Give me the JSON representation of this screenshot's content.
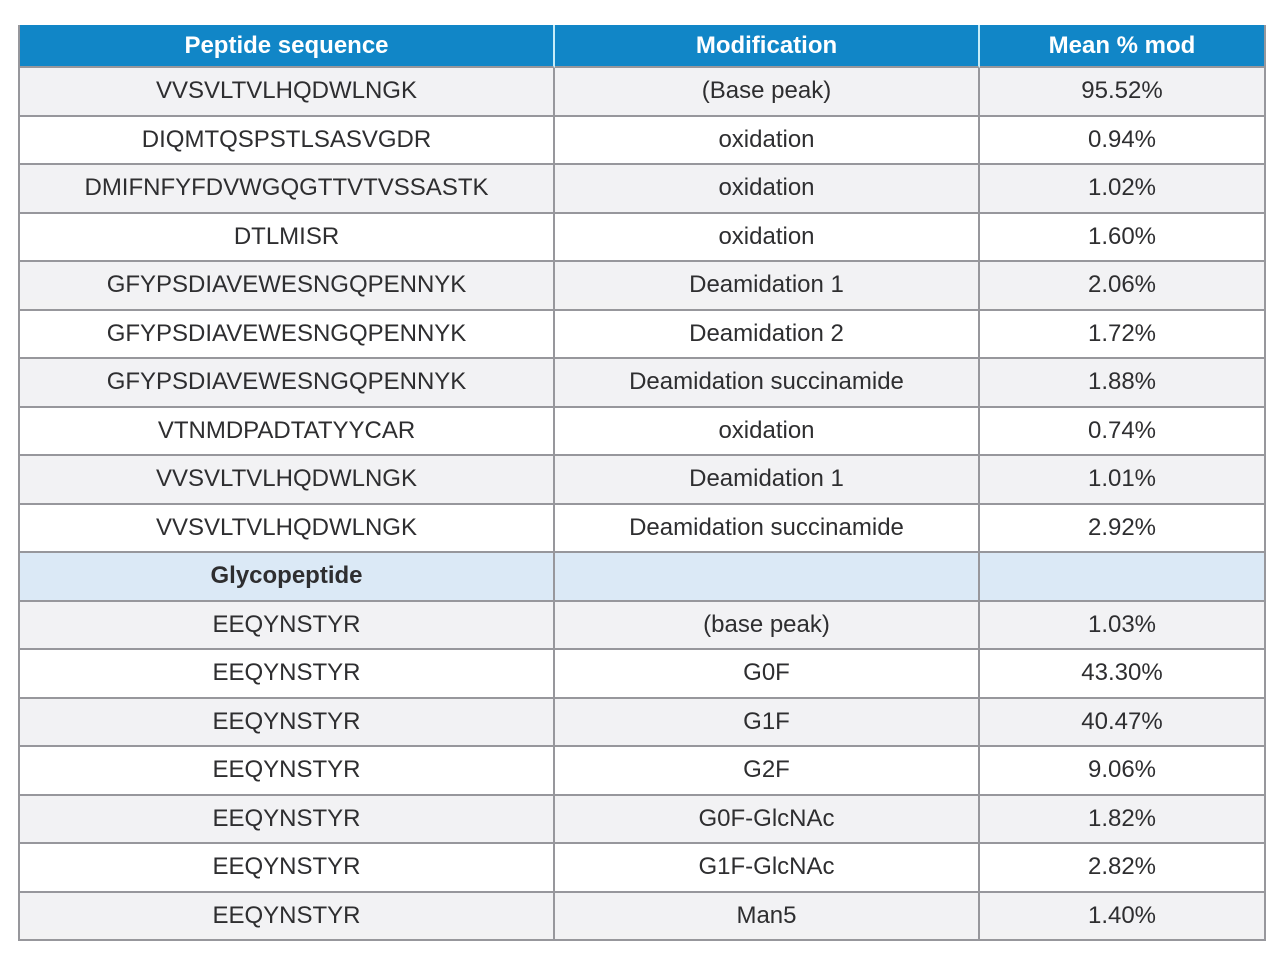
{
  "table": {
    "columns": [
      "Peptide sequence",
      "Modification",
      "Mean % mod"
    ],
    "rows": [
      {
        "seq": "VVSVLTVLHQDWLNGK",
        "mod": "(Base peak)",
        "mean": "95.52%"
      },
      {
        "seq": "DIQMTQSPSTLSASVGDR",
        "mod": "oxidation",
        "mean": "0.94%"
      },
      {
        "seq": "DMIFNFYFDVWGQGTTVTVSSASTK",
        "mod": "oxidation",
        "mean": "1.02%"
      },
      {
        "seq": "DTLMISR",
        "mod": "oxidation",
        "mean": "1.60%"
      },
      {
        "seq": "GFYPSDIAVEWESNGQPENNYK",
        "mod": "Deamidation 1",
        "mean": "2.06%"
      },
      {
        "seq": "GFYPSDIAVEWESNGQPENNYK",
        "mod": "Deamidation 2",
        "mean": "1.72%"
      },
      {
        "seq": "GFYPSDIAVEWESNGQPENNYK",
        "mod": "Deamidation succinamide",
        "mean": "1.88%"
      },
      {
        "seq": "VTNMDPADTATYYCAR",
        "mod": "oxidation",
        "mean": "0.74%"
      },
      {
        "seq": "VVSVLTVLHQDWLNGK",
        "mod": "Deamidation 1",
        "mean": "1.01%"
      },
      {
        "seq": "VVSVLTVLHQDWLNGK",
        "mod": "Deamidation succinamide",
        "mean": "2.92%"
      },
      {
        "section": "Glycopeptide"
      },
      {
        "seq": "EEQYNSTYR",
        "mod": "(base peak)",
        "mean": "1.03%"
      },
      {
        "seq": "EEQYNSTYR",
        "mod": "G0F",
        "mean": "43.30%"
      },
      {
        "seq": "EEQYNSTYR",
        "mod": "G1F",
        "mean": "40.47%"
      },
      {
        "seq": "EEQYNSTYR",
        "mod": "G2F",
        "mean": "9.06%"
      },
      {
        "seq": "EEQYNSTYR",
        "mod": "G0F-GlcNAc",
        "mean": "1.82%"
      },
      {
        "seq": "EEQYNSTYR",
        "mod": "G1F-GlcNAc",
        "mean": "2.82%"
      },
      {
        "seq": "EEQYNSTYR",
        "mod": "Man5",
        "mean": "1.40%"
      }
    ],
    "colors": {
      "header_bg": "#1186c7",
      "header_text": "#ffffff",
      "header_divider": "#c6ecf8",
      "section_bg": "#dbe9f6",
      "stripe_bg": "#f2f2f4",
      "border": "#97979c",
      "text": "#2e2e30"
    }
  }
}
